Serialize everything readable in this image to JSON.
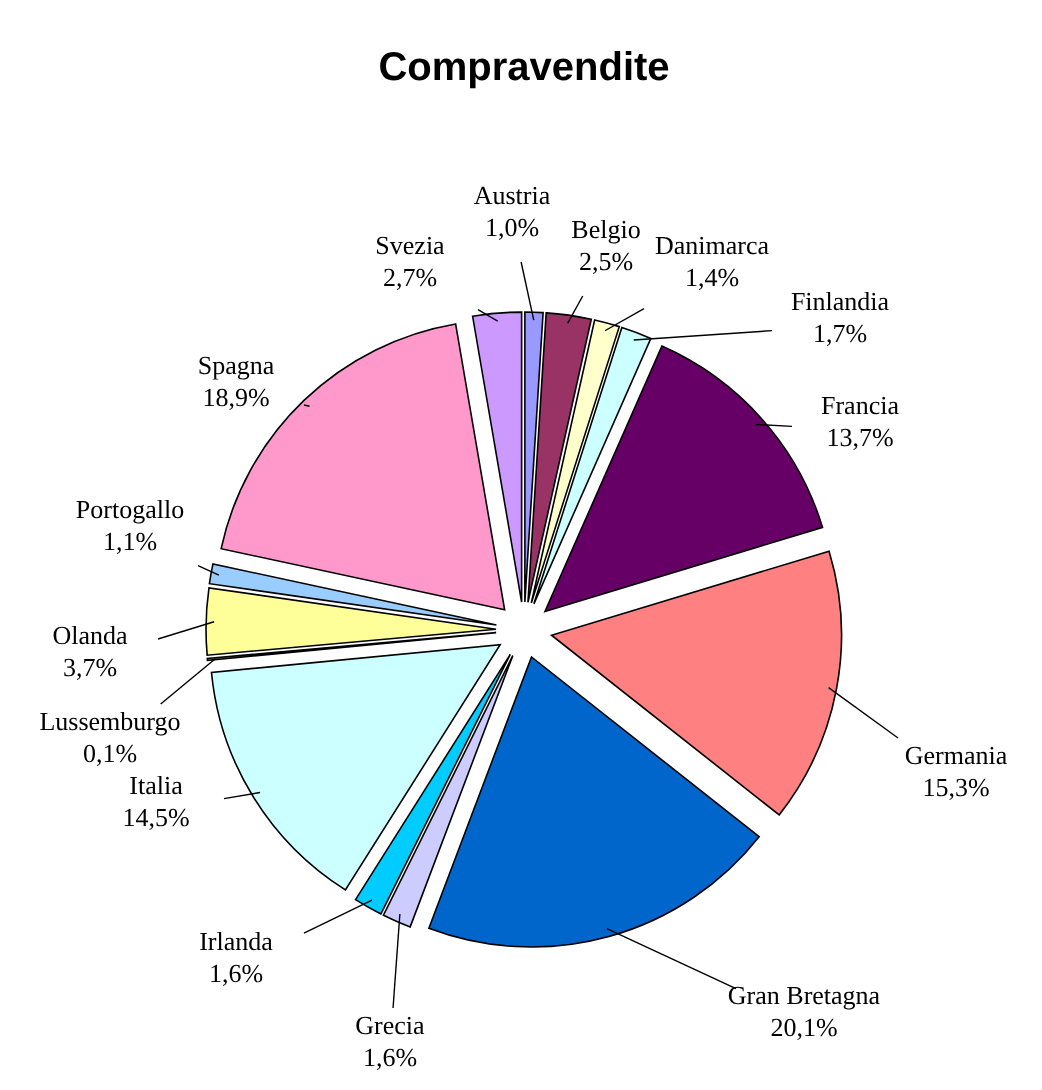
{
  "chart_data": {
    "type": "pie",
    "title": "Compravendite",
    "categories": [
      "Austria",
      "Belgio",
      "Danimarca",
      "Finlandia",
      "Francia",
      "Germania",
      "Gran Bretagna",
      "Grecia",
      "Irlanda",
      "Italia",
      "Lussemburgo",
      "Olanda",
      "Portogallo",
      "Spagna",
      "Svezia"
    ],
    "values": [
      1.0,
      2.5,
      1.4,
      1.7,
      13.7,
      15.3,
      20.1,
      1.6,
      1.6,
      14.5,
      0.1,
      3.7,
      1.1,
      18.9,
      2.7
    ],
    "value_labels": [
      "1,0%",
      "2,5%",
      "1,4%",
      "1,7%",
      "13,7%",
      "15,3%",
      "20,1%",
      "1,6%",
      "1,6%",
      "14,5%",
      "0,1%",
      "3,7%",
      "1,1%",
      "18,9%",
      "2,7%"
    ],
    "colors": [
      "#9999ff",
      "#993366",
      "#ffffcc",
      "#ccffff",
      "#660066",
      "#ff8080",
      "#0066cc",
      "#ccccff",
      "#00ccff",
      "#ccffff",
      "#ffffcc",
      "#ffff99",
      "#99ccff",
      "#ff99cc",
      "#cc99ff"
    ]
  }
}
